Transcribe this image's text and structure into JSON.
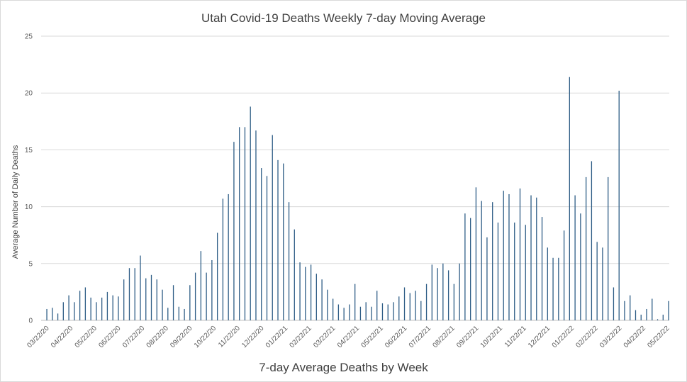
{
  "chart_data": {
    "type": "bar",
    "title": "Utah Covid-19 Deaths Weekly 7-day Moving Average",
    "xlabel": "7-day Average Deaths by Week",
    "ylabel": "Average Number of Daily Deaths",
    "ylim": [
      0,
      25
    ],
    "yticks": [
      0,
      5,
      10,
      15,
      20,
      25
    ],
    "grid": true,
    "legend": "none",
    "bar_color": "#2e5d86",
    "x_tick_labels": [
      "03/22/20",
      "04/22/20",
      "05/22/20",
      "06/22/20",
      "07/22/20",
      "08/22/20",
      "09/22/20",
      "10/22/20",
      "11/22/20",
      "12/22/20",
      "01/22/21",
      "02/22/21",
      "03/22/21",
      "04/22/21",
      "05/22/21",
      "06/22/21",
      "07/22/21",
      "08/22/21",
      "09/22/21",
      "10/22/21",
      "11/22/21",
      "12/22/21",
      "01/22/22",
      "02/22/22",
      "03/22/22",
      "04/22/22",
      "05/22/22"
    ],
    "values": [
      1.0,
      1.1,
      0.6,
      1.6,
      2.2,
      1.6,
      2.6,
      2.9,
      2.0,
      1.6,
      2.0,
      2.5,
      2.2,
      2.1,
      3.6,
      4.6,
      4.6,
      5.7,
      3.7,
      4.0,
      3.6,
      2.7,
      1.1,
      3.1,
      1.2,
      1.0,
      3.1,
      4.2,
      6.1,
      4.2,
      5.3,
      7.7,
      10.7,
      11.1,
      15.7,
      17.0,
      17.0,
      18.8,
      16.7,
      13.4,
      12.7,
      16.3,
      14.1,
      13.8,
      10.4,
      8.0,
      5.1,
      4.7,
      4.9,
      4.1,
      3.6,
      2.7,
      1.9,
      1.4,
      1.1,
      1.4,
      3.2,
      1.2,
      1.6,
      1.2,
      2.6,
      1.5,
      1.4,
      1.6,
      2.1,
      2.9,
      2.4,
      2.6,
      1.7,
      3.2,
      4.9,
      4.6,
      5.0,
      4.4,
      3.2,
      5.0,
      9.4,
      9.0,
      11.7,
      10.5,
      7.3,
      10.4,
      8.6,
      11.4,
      11.1,
      8.6,
      11.6,
      8.4,
      11.0,
      10.8,
      9.1,
      6.4,
      5.5,
      5.5,
      7.9,
      21.4,
      11.0,
      9.4,
      12.6,
      14.0,
      6.9,
      6.4,
      12.6,
      2.9,
      20.2,
      1.7,
      2.2,
      0.9,
      0.5,
      1.0,
      1.9,
      0.1,
      0.5,
      1.7
    ]
  }
}
